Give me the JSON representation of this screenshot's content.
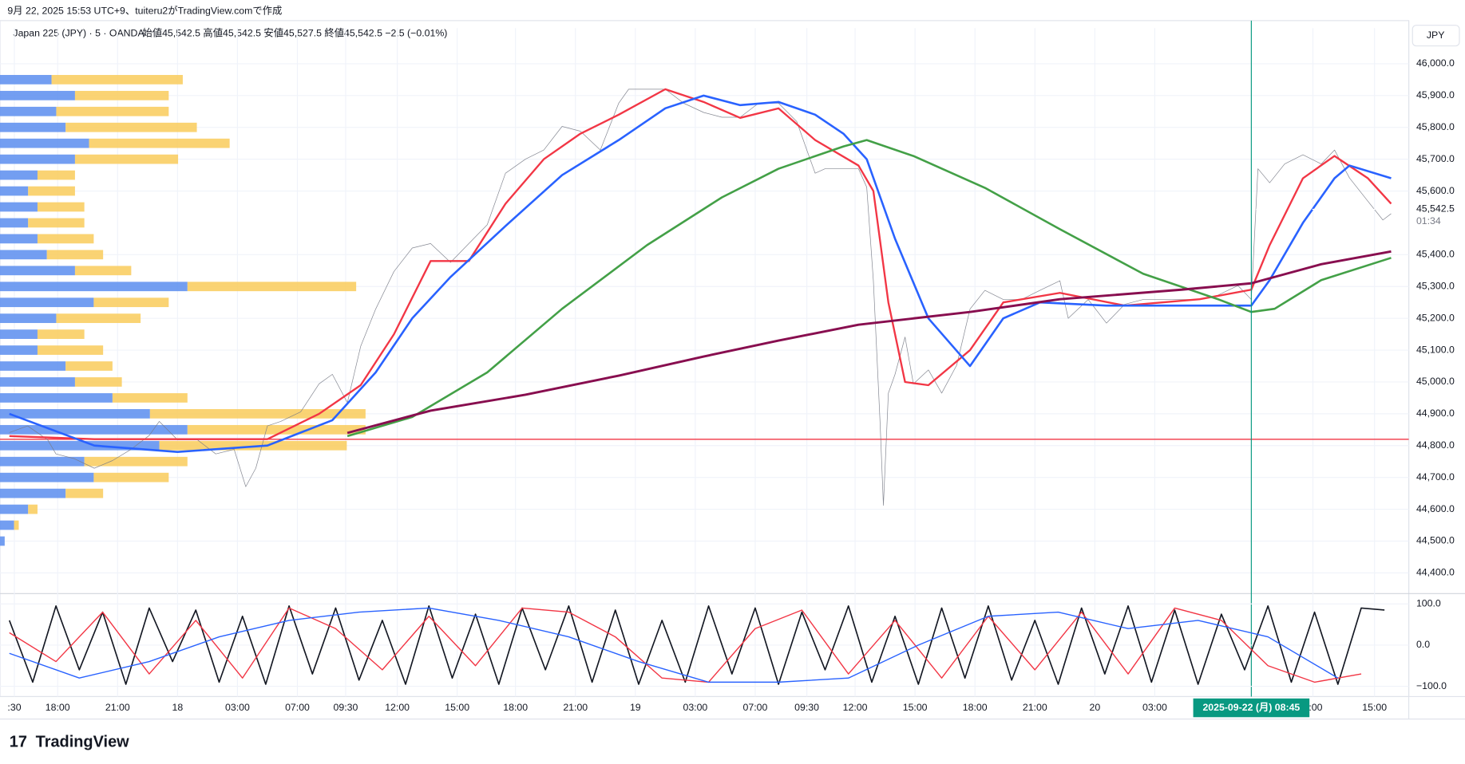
{
  "header": {
    "created": "9月 22, 2025 15:53 UTC+9、tuiteru2がTradingView.comで作成",
    "symbol": "Japan 225 (JPY) · 5 · OANDA",
    "ohlc": "始値45,542.5  高値45,542.5  安値45,527.5  終値45,542.5  −2.5 (−0.01%)"
  },
  "logo": "TradingView",
  "chart_data": [
    {
      "type": "line",
      "currency": "JPY",
      "countdown": "01:34",
      "last_price": {
        "value": 45542.5,
        "label": "45,542.5"
      },
      "hline": 44820,
      "cursor_x": {
        "value": 746,
        "label": "2025-09-22 (月)  08:45"
      },
      "xlim": [
        0,
        840
      ],
      "ylim": [
        44335,
        46112
      ],
      "xticks": [
        {
          "value": 3,
          "label": ":30"
        },
        {
          "value": 29,
          "label": "18:00"
        },
        {
          "value": 65,
          "label": "21:00"
        },
        {
          "value": 101,
          "label": "18"
        },
        {
          "value": 137,
          "label": "03:00"
        },
        {
          "value": 173,
          "label": "07:00"
        },
        {
          "value": 202,
          "label": "09:30"
        },
        {
          "value": 233,
          "label": "12:00"
        },
        {
          "value": 269,
          "label": "15:00"
        },
        {
          "value": 304,
          "label": "18:00"
        },
        {
          "value": 340,
          "label": "21:00"
        },
        {
          "value": 376,
          "label": "19"
        },
        {
          "value": 412,
          "label": "03:00"
        },
        {
          "value": 448,
          "label": "07:00"
        },
        {
          "value": 479,
          "label": "09:30"
        },
        {
          "value": 508,
          "label": "12:00"
        },
        {
          "value": 544,
          "label": "15:00"
        },
        {
          "value": 580,
          "label": "18:00"
        },
        {
          "value": 616,
          "label": "21:00"
        },
        {
          "value": 652,
          "label": "20"
        },
        {
          "value": 688,
          "label": "03:00"
        },
        {
          "value": 783,
          "label": "2:00"
        },
        {
          "value": 820,
          "label": "15:00"
        }
      ],
      "yticks": [
        {
          "value": 44400,
          "label": "44,400.0"
        },
        {
          "value": 44500,
          "label": "44,500.0"
        },
        {
          "value": 44600,
          "label": "44,600.0"
        },
        {
          "value": 44700,
          "label": "44,700.0"
        },
        {
          "value": 44800,
          "label": "44,800.0"
        },
        {
          "value": 44900,
          "label": "44,900.0"
        },
        {
          "value": 45000,
          "label": "45,000.0"
        },
        {
          "value": 45100,
          "label": "45,100.0"
        },
        {
          "value": 45200,
          "label": "45,200.0"
        },
        {
          "value": 45300,
          "label": "45,300.0"
        },
        {
          "value": 45400,
          "label": "45,400.0"
        },
        {
          "value": 45600,
          "label": "45,600.0"
        },
        {
          "value": 45700,
          "label": "45,700.0"
        },
        {
          "value": 45800,
          "label": "45,800.0"
        },
        {
          "value": 45900,
          "label": "45,900.0"
        },
        {
          "value": 46000,
          "label": "46,000.0"
        }
      ],
      "series": [
        {
          "color": "#787b86",
          "width": 0.6,
          "opacity": 0.9,
          "x": [
            0,
            11,
            23,
            28,
            39,
            51,
            62,
            73,
            84,
            90,
            101,
            113,
            124,
            135,
            142,
            148,
            155,
            163,
            175,
            186,
            194,
            203,
            211,
            220,
            231,
            242,
            253,
            265,
            276,
            287,
            298,
            310,
            321,
            332,
            343,
            355,
            366,
            372,
            383,
            394,
            405,
            417,
            428,
            439,
            450,
            462,
            473,
            479,
            484,
            490,
            501,
            510,
            515,
            519,
            523,
            525,
            528,
            532,
            538,
            543,
            552,
            560,
            569,
            577,
            586,
            597,
            608,
            619,
            631,
            636,
            648,
            659,
            670,
            681,
            693,
            704,
            715,
            726,
            738,
            746,
            750,
            757,
            766,
            777,
            788,
            796,
            805,
            816,
            825,
            830
          ],
          "values": [
            44841,
            44862,
            44818,
            44774,
            44759,
            44729,
            44753,
            44788,
            44832,
            44876,
            44818,
            44818,
            44774,
            44788,
            44671,
            44729,
            44862,
            44876,
            44906,
            44994,
            45024,
            44935,
            45112,
            45229,
            45347,
            45421,
            45435,
            45376,
            45435,
            45494,
            45656,
            45700,
            45729,
            45803,
            45788,
            45729,
            45876,
            45920,
            45920,
            45920,
            45876,
            45847,
            45832,
            45832,
            45876,
            45876,
            45818,
            45729,
            45656,
            45670,
            45670,
            45670,
            45612,
            45318,
            44876,
            44612,
            44965,
            45024,
            45141,
            44994,
            45038,
            44965,
            45053,
            45229,
            45288,
            45259,
            45259,
            45288,
            45318,
            45200,
            45259,
            45185,
            45244,
            45259,
            45259,
            45259,
            45259,
            45273,
            45303,
            45259,
            45670,
            45626,
            45685,
            45714,
            45685,
            45729,
            45641,
            45568,
            45509,
            45529
          ]
        },
        {
          "color": "#f23645",
          "width": 2,
          "x": [
            0,
            51,
            101,
            155,
            186,
            211,
            231,
            253,
            276,
            298,
            321,
            343,
            366,
            394,
            417,
            439,
            462,
            484,
            510,
            519,
            528,
            538,
            552,
            577,
            597,
            631,
            670,
            715,
            746,
            757,
            777,
            796,
            816,
            830
          ],
          "values": [
            44830,
            44820,
            44820,
            44820,
            44900,
            44990,
            45150,
            45380,
            45380,
            45560,
            45700,
            45780,
            45840,
            45920,
            45880,
            45830,
            45860,
            45760,
            45680,
            45600,
            45250,
            45000,
            44990,
            45100,
            45250,
            45280,
            45240,
            45260,
            45290,
            45430,
            45640,
            45710,
            45640,
            45560
          ]
        },
        {
          "color": "#2962ff",
          "width": 2.2,
          "x": [
            0,
            51,
            101,
            155,
            194,
            220,
            242,
            265,
            298,
            332,
            366,
            394,
            417,
            439,
            462,
            484,
            501,
            515,
            532,
            552,
            577,
            597,
            619,
            659,
            715,
            746,
            757,
            777,
            796,
            805,
            830
          ],
          "values": [
            44900,
            44800,
            44780,
            44800,
            44880,
            45030,
            45200,
            45330,
            45490,
            45650,
            45760,
            45860,
            45900,
            45870,
            45880,
            45840,
            45780,
            45700,
            45450,
            45200,
            45050,
            45200,
            45250,
            45240,
            45240,
            45240,
            45320,
            45500,
            45640,
            45680,
            45640
          ]
        },
        {
          "color": "#43a047",
          "width": 2.2,
          "x": [
            203,
            242,
            287,
            332,
            383,
            428,
            462,
            501,
            515,
            543,
            586,
            631,
            681,
            726,
            746,
            760,
            788,
            830
          ],
          "values": [
            44830,
            44890,
            45030,
            45230,
            45430,
            45580,
            45670,
            45740,
            45760,
            45710,
            45610,
            45480,
            45340,
            45260,
            45220,
            45230,
            45320,
            45390
          ]
        },
        {
          "color": "#880e4f",
          "width": 2.5,
          "x": [
            203,
            253,
            310,
            366,
            417,
            462,
            510,
            577,
            631,
            704,
            746,
            788,
            830
          ],
          "values": [
            44840,
            44910,
            44960,
            45020,
            45080,
            45130,
            45180,
            45220,
            45260,
            45290,
            45310,
            45370,
            45410
          ]
        }
      ],
      "volume_profile": {
        "levels": [
          45950,
          45900,
          45850,
          45800,
          45750,
          45700,
          45650,
          45600,
          45550,
          45500,
          45450,
          45400,
          45350,
          45300,
          45250,
          45200,
          45150,
          45100,
          45050,
          45000,
          44950,
          44900,
          44850,
          44800,
          44750,
          44700,
          44650,
          44600,
          44550,
          44500
        ],
        "colors": [
          "#5b8def",
          "#f9cb5b"
        ],
        "up": [
          55,
          80,
          60,
          70,
          95,
          80,
          40,
          30,
          40,
          30,
          40,
          50,
          80,
          200,
          100,
          60,
          40,
          40,
          70,
          80,
          120,
          160,
          200,
          170,
          90,
          100,
          70,
          30,
          15,
          5
        ],
        "down": [
          140,
          100,
          120,
          140,
          150,
          110,
          40,
          50,
          50,
          60,
          60,
          60,
          60,
          180,
          80,
          90,
          50,
          70,
          50,
          50,
          80,
          230,
          190,
          200,
          110,
          80,
          40,
          10,
          5,
          0
        ]
      }
    },
    {
      "type": "line",
      "xlim": [
        0,
        840
      ],
      "ylim": [
        -125,
        125
      ],
      "yticks": [
        {
          "value": 100,
          "label": "100.0"
        },
        {
          "value": 0,
          "label": "0.0"
        },
        {
          "value": -100,
          "label": "−100.0"
        }
      ],
      "series": [
        {
          "color": "#131722",
          "width": 1.4,
          "x": [
            0,
            14,
            28,
            42,
            56,
            70,
            84,
            98,
            112,
            126,
            140,
            154,
            168,
            182,
            196,
            210,
            224,
            238,
            252,
            266,
            280,
            294,
            308,
            322,
            336,
            350,
            364,
            378,
            392,
            406,
            420,
            434,
            448,
            462,
            476,
            490,
            504,
            518,
            532,
            546,
            560,
            574,
            588,
            602,
            616,
            630,
            644,
            658,
            672,
            686,
            700,
            714,
            728,
            742,
            756,
            770,
            784,
            798,
            812,
            826
          ],
          "values": [
            60,
            -90,
            95,
            -60,
            80,
            -95,
            90,
            -40,
            85,
            -90,
            70,
            -95,
            95,
            -70,
            90,
            -85,
            60,
            -95,
            95,
            -80,
            75,
            -95,
            90,
            -60,
            95,
            -90,
            85,
            -95,
            60,
            -90,
            95,
            -70,
            90,
            -95,
            80,
            -60,
            95,
            -90,
            70,
            -95,
            90,
            -80,
            95,
            -85,
            60,
            -95,
            90,
            -70,
            95,
            -90,
            85,
            -95,
            75,
            -60,
            95,
            -90,
            80,
            -95,
            90,
            85
          ]
        },
        {
          "color": "#f23645",
          "width": 1.2,
          "x": [
            0,
            28,
            56,
            84,
            112,
            140,
            168,
            196,
            224,
            252,
            280,
            308,
            336,
            364,
            392,
            420,
            448,
            476,
            504,
            532,
            560,
            588,
            616,
            644,
            672,
            700,
            728,
            756,
            784,
            812
          ],
          "values": [
            30,
            -40,
            80,
            -70,
            60,
            -80,
            90,
            40,
            -60,
            70,
            -50,
            90,
            80,
            20,
            -80,
            -90,
            40,
            85,
            -70,
            60,
            -80,
            70,
            -60,
            80,
            -70,
            90,
            60,
            -50,
            -90,
            -70
          ]
        },
        {
          "color": "#2962ff",
          "width": 1.2,
          "x": [
            0,
            42,
            84,
            126,
            168,
            210,
            252,
            294,
            336,
            378,
            420,
            462,
            504,
            546,
            588,
            630,
            672,
            714,
            756,
            798
          ],
          "values": [
            -20,
            -80,
            -40,
            20,
            60,
            80,
            90,
            60,
            20,
            -40,
            -90,
            -90,
            -80,
            0,
            70,
            80,
            40,
            60,
            20,
            -80
          ]
        }
      ]
    }
  ]
}
